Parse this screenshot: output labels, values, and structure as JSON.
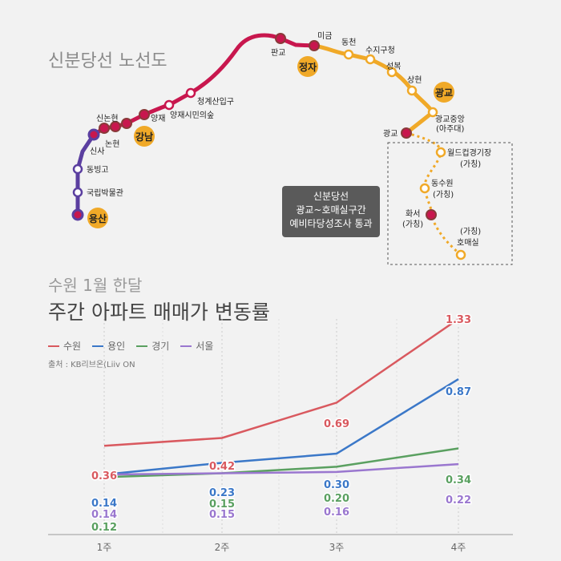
{
  "map": {
    "title": "신분당선 노선도",
    "note": [
      "신분당선",
      "광교~호매실구간",
      "예비타당성조사 통과"
    ],
    "hubs": [
      "용산",
      "강남",
      "정자",
      "광교"
    ],
    "stations": {
      "yongsan_north": [
        "국립박물관",
        "동빙고",
        "신사"
      ],
      "gangnam_line": [
        "논현",
        "신논현",
        "양재",
        "양재시민의숲",
        "청계산입구",
        "판교"
      ],
      "jeongja_gwanggyo": [
        "미금",
        "동천",
        "수지구청",
        "성복",
        "상현",
        "광교중앙",
        "(아주대)",
        "광교"
      ],
      "extension": [
        "월드컵경기장",
        "(가칭)",
        "동수원",
        "(가칭)",
        "화서",
        "(가칭)",
        "(가칭)",
        "호매실"
      ]
    },
    "colors": {
      "north": "#5b3fa0",
      "main": "#c8174e",
      "south": "#f0a928",
      "hub": "#f0a928",
      "note_bg": "#5a5a5a"
    }
  },
  "chart": {
    "subtitle": "수원 1월 한달",
    "title": "주간 아파트 매매가 변동률",
    "source": "출처 : KB리브온(Liiv ON"
  },
  "chart_data": {
    "type": "line",
    "title": "주간 아파트 매매가 변동률",
    "subtitle": "수원 1월 한달",
    "categories": [
      "1주",
      "2주",
      "3주",
      "4주"
    ],
    "series": [
      {
        "name": "수원",
        "color": "#d9595f",
        "values": [
          0.36,
          0.42,
          0.69,
          1.33
        ],
        "labels": [
          "0.36",
          "0.42",
          "0.69",
          "1.33"
        ]
      },
      {
        "name": "용인",
        "color": "#3b78c8",
        "values": [
          0.14,
          0.23,
          0.3,
          0.87
        ],
        "labels": [
          "0.14",
          "0.23",
          "0.30",
          "0.87"
        ]
      },
      {
        "name": "경기",
        "color": "#5aa060",
        "values": [
          0.12,
          0.15,
          0.2,
          0.34
        ],
        "labels": [
          "0.12",
          "0.15",
          "0.20",
          "0.34"
        ]
      },
      {
        "name": "서울",
        "color": "#9a77cf",
        "values": [
          0.14,
          0.15,
          0.16,
          0.22
        ],
        "labels": [
          "0.14",
          "0.15",
          "0.16",
          "0.22"
        ]
      }
    ],
    "xlabel": "",
    "ylabel": "",
    "grid": "vertical",
    "legend": "top-left",
    "source": "출처 : KB리브온(Liiv ON"
  }
}
